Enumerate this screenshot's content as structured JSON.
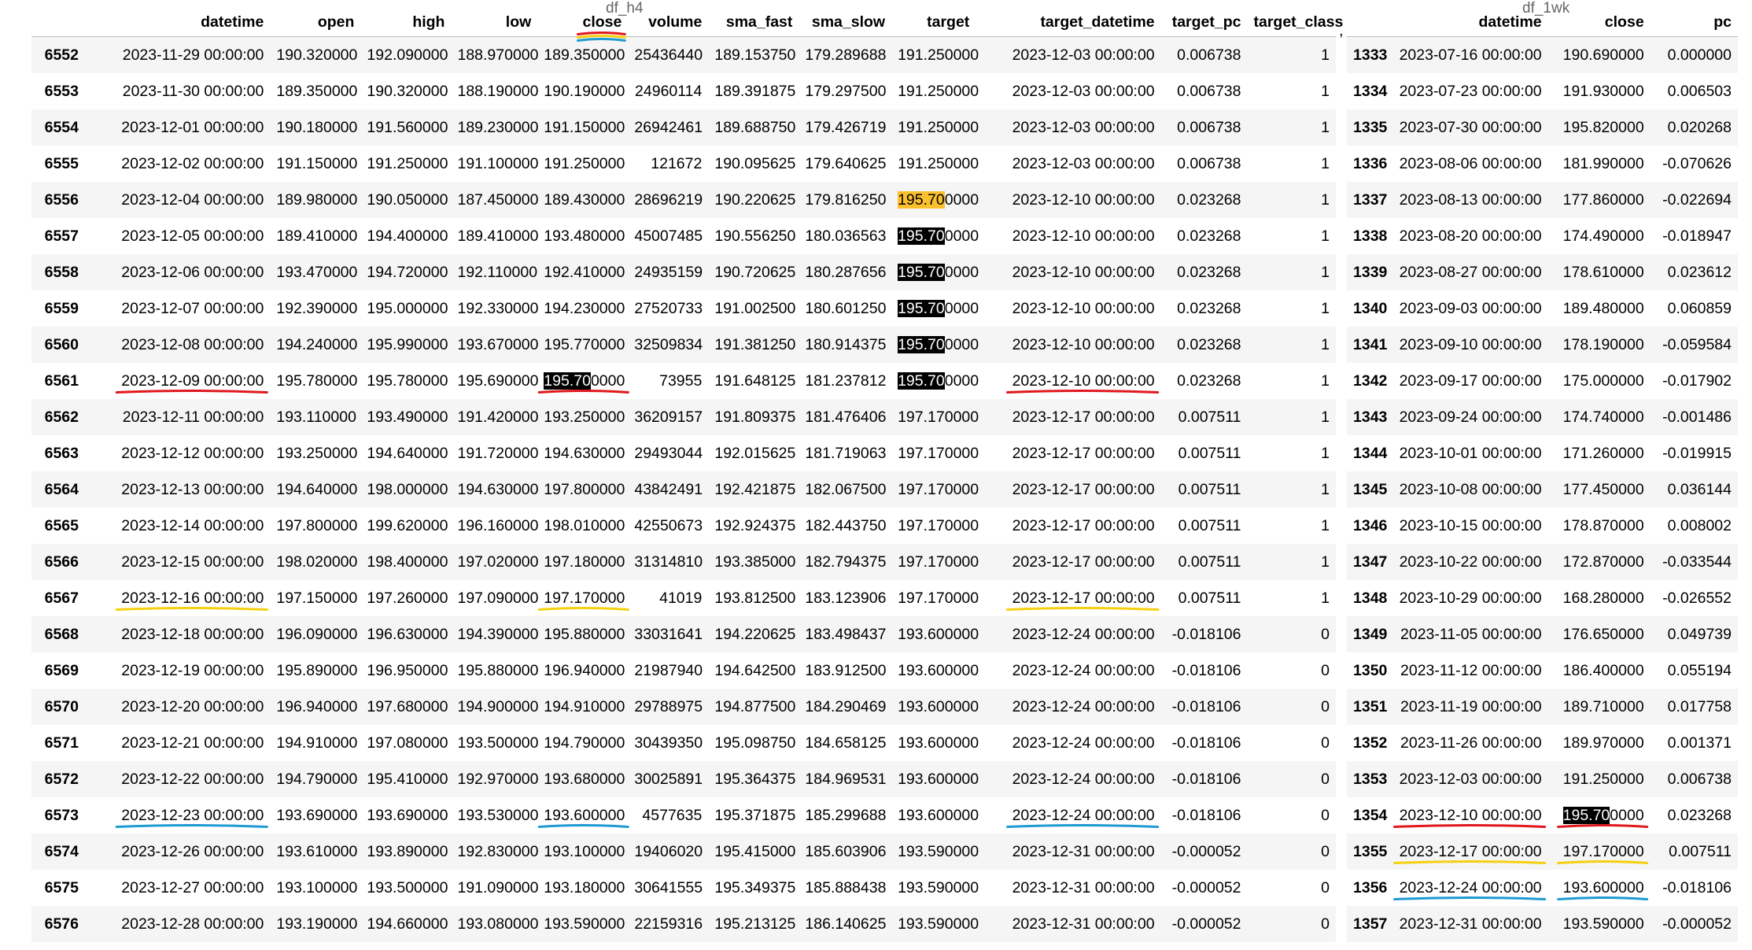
{
  "top_clipped_labels": {
    "left": "df_h4",
    "right": "df_1wk"
  },
  "separator": ",",
  "colors": {
    "red": "#e0181e",
    "yellow": "#f5d00f",
    "blue": "#1e9bd1",
    "highlight_yellow": "#fbc02d",
    "highlight_black": "#000000"
  },
  "left_table": {
    "index_header": "",
    "columns": [
      "datetime",
      "open",
      "high",
      "low",
      "close",
      "volume",
      "sma_fast",
      "sma_slow",
      "target",
      "target_datetime",
      "target_pc",
      "target_class"
    ],
    "rows": [
      [
        "6552",
        "2023-11-29 00:00:00",
        "190.320000",
        "192.090000",
        "188.970000",
        "189.350000",
        "25436440",
        "189.153750",
        "179.289688",
        "191.250000",
        "2023-12-03 00:00:00",
        "0.006738",
        "1"
      ],
      [
        "6553",
        "2023-11-30 00:00:00",
        "189.350000",
        "190.320000",
        "188.190000",
        "190.190000",
        "24960114",
        "189.391875",
        "179.297500",
        "191.250000",
        "2023-12-03 00:00:00",
        "0.006738",
        "1"
      ],
      [
        "6554",
        "2023-12-01 00:00:00",
        "190.180000",
        "191.560000",
        "189.230000",
        "191.150000",
        "26942461",
        "189.688750",
        "179.426719",
        "191.250000",
        "2023-12-03 00:00:00",
        "0.006738",
        "1"
      ],
      [
        "6555",
        "2023-12-02 00:00:00",
        "191.150000",
        "191.250000",
        "191.100000",
        "191.250000",
        "121672",
        "190.095625",
        "179.640625",
        "191.250000",
        "2023-12-03 00:00:00",
        "0.006738",
        "1"
      ],
      [
        "6556",
        "2023-12-04 00:00:00",
        "189.980000",
        "190.050000",
        "187.450000",
        "189.430000",
        "28696219",
        "190.220625",
        "179.816250",
        "195.700000",
        "2023-12-10 00:00:00",
        "0.023268",
        "1"
      ],
      [
        "6557",
        "2023-12-05 00:00:00",
        "189.410000",
        "194.400000",
        "189.410000",
        "193.480000",
        "45007485",
        "190.556250",
        "180.036563",
        "195.700000",
        "2023-12-10 00:00:00",
        "0.023268",
        "1"
      ],
      [
        "6558",
        "2023-12-06 00:00:00",
        "193.470000",
        "194.720000",
        "192.110000",
        "192.410000",
        "24935159",
        "190.720625",
        "180.287656",
        "195.700000",
        "2023-12-10 00:00:00",
        "0.023268",
        "1"
      ],
      [
        "6559",
        "2023-12-07 00:00:00",
        "192.390000",
        "195.000000",
        "192.330000",
        "194.230000",
        "27520733",
        "191.002500",
        "180.601250",
        "195.700000",
        "2023-12-10 00:00:00",
        "0.023268",
        "1"
      ],
      [
        "6560",
        "2023-12-08 00:00:00",
        "194.240000",
        "195.990000",
        "193.670000",
        "195.770000",
        "32509834",
        "191.381250",
        "180.914375",
        "195.700000",
        "2023-12-10 00:00:00",
        "0.023268",
        "1"
      ],
      [
        "6561",
        "2023-12-09 00:00:00",
        "195.780000",
        "195.780000",
        "195.690000",
        "195.700000",
        "73955",
        "191.648125",
        "181.237812",
        "195.700000",
        "2023-12-10 00:00:00",
        "0.023268",
        "1"
      ],
      [
        "6562",
        "2023-12-11 00:00:00",
        "193.110000",
        "193.490000",
        "191.420000",
        "193.250000",
        "36209157",
        "191.809375",
        "181.476406",
        "197.170000",
        "2023-12-17 00:00:00",
        "0.007511",
        "1"
      ],
      [
        "6563",
        "2023-12-12 00:00:00",
        "193.250000",
        "194.640000",
        "191.720000",
        "194.630000",
        "29493044",
        "192.015625",
        "181.719063",
        "197.170000",
        "2023-12-17 00:00:00",
        "0.007511",
        "1"
      ],
      [
        "6564",
        "2023-12-13 00:00:00",
        "194.640000",
        "198.000000",
        "194.630000",
        "197.800000",
        "43842491",
        "192.421875",
        "182.067500",
        "197.170000",
        "2023-12-17 00:00:00",
        "0.007511",
        "1"
      ],
      [
        "6565",
        "2023-12-14 00:00:00",
        "197.800000",
        "199.620000",
        "196.160000",
        "198.010000",
        "42550673",
        "192.924375",
        "182.443750",
        "197.170000",
        "2023-12-17 00:00:00",
        "0.007511",
        "1"
      ],
      [
        "6566",
        "2023-12-15 00:00:00",
        "198.020000",
        "198.400000",
        "197.020000",
        "197.180000",
        "31314810",
        "193.385000",
        "182.794375",
        "197.170000",
        "2023-12-17 00:00:00",
        "0.007511",
        "1"
      ],
      [
        "6567",
        "2023-12-16 00:00:00",
        "197.150000",
        "197.260000",
        "197.090000",
        "197.170000",
        "41019",
        "193.812500",
        "183.123906",
        "197.170000",
        "2023-12-17 00:00:00",
        "0.007511",
        "1"
      ],
      [
        "6568",
        "2023-12-18 00:00:00",
        "196.090000",
        "196.630000",
        "194.390000",
        "195.880000",
        "33031641",
        "194.220625",
        "183.498437",
        "193.600000",
        "2023-12-24 00:00:00",
        "-0.018106",
        "0"
      ],
      [
        "6569",
        "2023-12-19 00:00:00",
        "195.890000",
        "196.950000",
        "195.880000",
        "196.940000",
        "21987940",
        "194.642500",
        "183.912500",
        "193.600000",
        "2023-12-24 00:00:00",
        "-0.018106",
        "0"
      ],
      [
        "6570",
        "2023-12-20 00:00:00",
        "196.940000",
        "197.680000",
        "194.900000",
        "194.910000",
        "29788975",
        "194.877500",
        "184.290469",
        "193.600000",
        "2023-12-24 00:00:00",
        "-0.018106",
        "0"
      ],
      [
        "6571",
        "2023-12-21 00:00:00",
        "194.910000",
        "197.080000",
        "193.500000",
        "194.790000",
        "30439350",
        "195.098750",
        "184.658125",
        "193.600000",
        "2023-12-24 00:00:00",
        "-0.018106",
        "0"
      ],
      [
        "6572",
        "2023-12-22 00:00:00",
        "194.790000",
        "195.410000",
        "192.970000",
        "193.680000",
        "30025891",
        "195.364375",
        "184.969531",
        "193.600000",
        "2023-12-24 00:00:00",
        "-0.018106",
        "0"
      ],
      [
        "6573",
        "2023-12-23 00:00:00",
        "193.690000",
        "193.690000",
        "193.530000",
        "193.600000",
        "4577635",
        "195.371875",
        "185.299688",
        "193.600000",
        "2023-12-24 00:00:00",
        "-0.018106",
        "0"
      ],
      [
        "6574",
        "2023-12-26 00:00:00",
        "193.610000",
        "193.890000",
        "192.830000",
        "193.100000",
        "19406020",
        "195.415000",
        "185.603906",
        "193.590000",
        "2023-12-31 00:00:00",
        "-0.000052",
        "0"
      ],
      [
        "6575",
        "2023-12-27 00:00:00",
        "193.100000",
        "193.500000",
        "191.090000",
        "193.180000",
        "30641555",
        "195.349375",
        "185.888438",
        "193.590000",
        "2023-12-31 00:00:00",
        "-0.000052",
        "0"
      ],
      [
        "6576",
        "2023-12-28 00:00:00",
        "193.190000",
        "194.660000",
        "193.080000",
        "193.590000",
        "22159316",
        "195.213125",
        "186.140625",
        "193.590000",
        "2023-12-31 00:00:00",
        "-0.000052",
        "0"
      ]
    ]
  },
  "right_table": {
    "index_header": "",
    "columns": [
      "datetime",
      "close",
      "pc"
    ],
    "rows": [
      [
        "1333",
        "2023-07-16 00:00:00",
        "190.690000",
        "0.000000"
      ],
      [
        "1334",
        "2023-07-23 00:00:00",
        "191.930000",
        "0.006503"
      ],
      [
        "1335",
        "2023-07-30 00:00:00",
        "195.820000",
        "0.020268"
      ],
      [
        "1336",
        "2023-08-06 00:00:00",
        "181.990000",
        "-0.070626"
      ],
      [
        "1337",
        "2023-08-13 00:00:00",
        "177.860000",
        "-0.022694"
      ],
      [
        "1338",
        "2023-08-20 00:00:00",
        "174.490000",
        "-0.018947"
      ],
      [
        "1339",
        "2023-08-27 00:00:00",
        "178.610000",
        "0.023612"
      ],
      [
        "1340",
        "2023-09-03 00:00:00",
        "189.480000",
        "0.060859"
      ],
      [
        "1341",
        "2023-09-10 00:00:00",
        "178.190000",
        "-0.059584"
      ],
      [
        "1342",
        "2023-09-17 00:00:00",
        "175.000000",
        "-0.017902"
      ],
      [
        "1343",
        "2023-09-24 00:00:00",
        "174.740000",
        "-0.001486"
      ],
      [
        "1344",
        "2023-10-01 00:00:00",
        "171.260000",
        "-0.019915"
      ],
      [
        "1345",
        "2023-10-08 00:00:00",
        "177.450000",
        "0.036144"
      ],
      [
        "1346",
        "2023-10-15 00:00:00",
        "178.870000",
        "0.008002"
      ],
      [
        "1347",
        "2023-10-22 00:00:00",
        "172.870000",
        "-0.033544"
      ],
      [
        "1348",
        "2023-10-29 00:00:00",
        "168.280000",
        "-0.026552"
      ],
      [
        "1349",
        "2023-11-05 00:00:00",
        "176.650000",
        "0.049739"
      ],
      [
        "1350",
        "2023-11-12 00:00:00",
        "186.400000",
        "0.055194"
      ],
      [
        "1351",
        "2023-11-19 00:00:00",
        "189.710000",
        "0.017758"
      ],
      [
        "1352",
        "2023-11-26 00:00:00",
        "189.970000",
        "0.001371"
      ],
      [
        "1353",
        "2023-12-03 00:00:00",
        "191.250000",
        "0.006738"
      ],
      [
        "1354",
        "2023-12-10 00:00:00",
        "195.700000",
        "0.023268"
      ],
      [
        "1355",
        "2023-12-17 00:00:00",
        "197.170000",
        "0.007511"
      ],
      [
        "1356",
        "2023-12-24 00:00:00",
        "193.600000",
        "-0.018106"
      ],
      [
        "1357",
        "2023-12-31 00:00:00",
        "193.590000",
        "-0.000052"
      ]
    ]
  },
  "highlights": [
    {
      "table": "left",
      "row": 4,
      "col": "target",
      "style": "yellow",
      "chars": 6
    },
    {
      "table": "left",
      "row": 5,
      "col": "target",
      "style": "black",
      "chars": 6
    },
    {
      "table": "left",
      "row": 6,
      "col": "target",
      "style": "black",
      "chars": 6
    },
    {
      "table": "left",
      "row": 7,
      "col": "target",
      "style": "black",
      "chars": 6
    },
    {
      "table": "left",
      "row": 8,
      "col": "target",
      "style": "black",
      "chars": 6
    },
    {
      "table": "left",
      "row": 9,
      "col": "target",
      "style": "black",
      "chars": 6
    },
    {
      "table": "left",
      "row": 9,
      "col": "close",
      "style": "black",
      "chars": 6
    },
    {
      "table": "right",
      "row": 21,
      "col": "close",
      "style": "black",
      "chars": 6
    }
  ],
  "annotations": [
    {
      "table": "left",
      "row": -1,
      "col": "close",
      "color": "red"
    },
    {
      "table": "left",
      "row": -1,
      "col": "close",
      "color": "yellow"
    },
    {
      "table": "left",
      "row": -1,
      "col": "close",
      "color": "blue"
    },
    {
      "table": "left",
      "row": 9,
      "col": "datetime",
      "color": "red"
    },
    {
      "table": "left",
      "row": 9,
      "col": "close",
      "color": "red"
    },
    {
      "table": "left",
      "row": 9,
      "col": "target_datetime",
      "color": "red"
    },
    {
      "table": "left",
      "row": 15,
      "col": "datetime",
      "color": "yellow"
    },
    {
      "table": "left",
      "row": 15,
      "col": "close",
      "color": "yellow"
    },
    {
      "table": "left",
      "row": 15,
      "col": "target_datetime",
      "color": "yellow"
    },
    {
      "table": "left",
      "row": 21,
      "col": "datetime",
      "color": "blue"
    },
    {
      "table": "left",
      "row": 21,
      "col": "close",
      "color": "blue"
    },
    {
      "table": "left",
      "row": 21,
      "col": "target_datetime",
      "color": "blue"
    },
    {
      "table": "right",
      "row": 21,
      "col": "datetime",
      "color": "red"
    },
    {
      "table": "right",
      "row": 21,
      "col": "close",
      "color": "red"
    },
    {
      "table": "right",
      "row": 22,
      "col": "datetime",
      "color": "yellow"
    },
    {
      "table": "right",
      "row": 22,
      "col": "close",
      "color": "yellow"
    },
    {
      "table": "right",
      "row": 23,
      "col": "datetime",
      "color": "blue"
    },
    {
      "table": "right",
      "row": 23,
      "col": "close",
      "color": "blue"
    }
  ]
}
